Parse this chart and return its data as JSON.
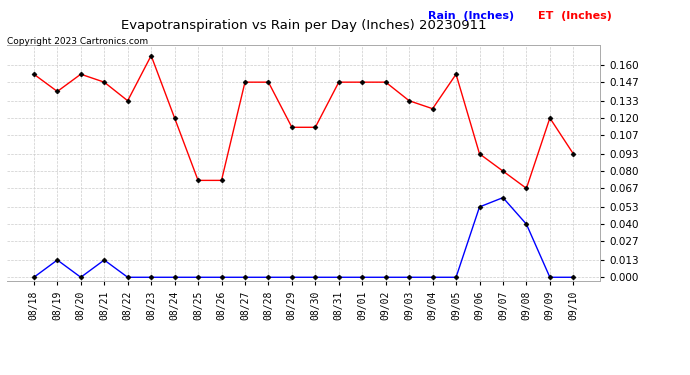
{
  "title": "Evapotranspiration vs Rain per Day (Inches) 20230911",
  "copyright": "Copyright 2023 Cartronics.com",
  "labels": [
    "08/18",
    "08/19",
    "08/20",
    "08/21",
    "08/22",
    "08/23",
    "08/24",
    "08/25",
    "08/26",
    "08/27",
    "08/28",
    "08/29",
    "08/30",
    "08/31",
    "09/01",
    "09/02",
    "09/03",
    "09/04",
    "09/05",
    "09/06",
    "09/07",
    "09/08",
    "09/09",
    "09/10"
  ],
  "et_values": [
    0.153,
    0.14,
    0.153,
    0.147,
    0.133,
    0.167,
    0.12,
    0.073,
    0.073,
    0.147,
    0.147,
    0.113,
    0.113,
    0.147,
    0.147,
    0.147,
    0.133,
    0.127,
    0.153,
    0.093,
    0.08,
    0.067,
    0.12,
    0.093
  ],
  "rain_values": [
    0.0,
    0.013,
    0.0,
    0.013,
    0.0,
    0.0,
    0.0,
    0.0,
    0.0,
    0.0,
    0.0,
    0.0,
    0.0,
    0.0,
    0.0,
    0.0,
    0.0,
    0.0,
    0.0,
    0.053,
    0.06,
    0.04,
    0.0,
    0.0
  ],
  "et_color": "red",
  "rain_color": "blue",
  "et_label": "ET  (Inches)",
  "rain_label": "Rain  (Inches)",
  "ylim_min": -0.003,
  "ylim_max": 0.175,
  "yticks": [
    0.0,
    0.013,
    0.027,
    0.04,
    0.053,
    0.067,
    0.08,
    0.093,
    0.107,
    0.12,
    0.133,
    0.147,
    0.16
  ],
  "background_color": "#ffffff",
  "grid_color": "#cccccc"
}
